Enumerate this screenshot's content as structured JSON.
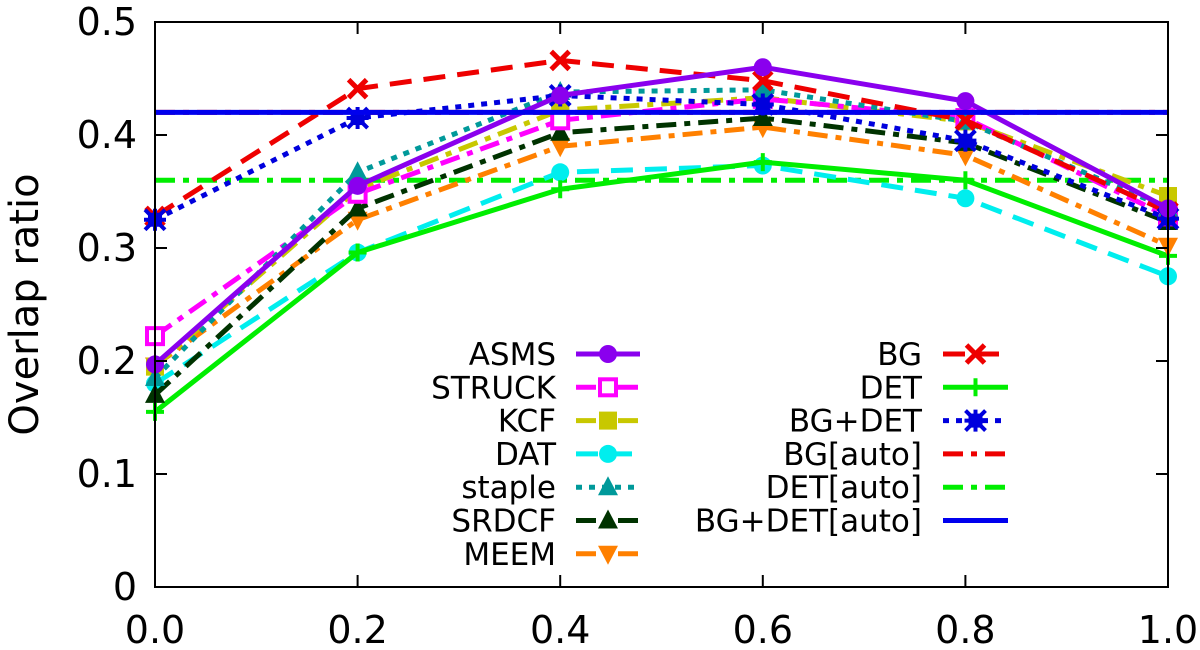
{
  "chart_data": {
    "type": "line",
    "title": "",
    "xlabel": "",
    "ylabel": "Overlap ratio",
    "xlim": [
      0.0,
      1.0
    ],
    "ylim": [
      0,
      0.5
    ],
    "x": [
      0.0,
      0.2,
      0.4,
      0.6,
      0.8,
      1.0
    ],
    "x_tick_labels": [
      "0.0",
      "0.2",
      "0.4",
      "0.6",
      "0.8",
      "1.0"
    ],
    "y_ticks": [
      0,
      0.1,
      0.2,
      0.3,
      0.4,
      0.5
    ],
    "y_tick_labels": [
      "0",
      "0.1",
      "0.2",
      "0.3",
      "0.4",
      "0.5"
    ],
    "grid": false,
    "legend_position": "bottom-center",
    "series": [
      {
        "name": "ASMS",
        "color": "#8a00ee",
        "dash": "solid",
        "marker": "circle",
        "values": [
          0.197,
          0.355,
          0.435,
          0.46,
          0.43,
          0.335
        ]
      },
      {
        "name": "STRUCK",
        "color": "#ff00ff",
        "dash": "dashdot",
        "marker": "square-open",
        "values": [
          0.222,
          0.348,
          0.413,
          0.432,
          0.415,
          0.328
        ]
      },
      {
        "name": "KCF",
        "color": "#c8c800",
        "dash": "dashdot",
        "marker": "square",
        "values": [
          0.195,
          0.352,
          0.422,
          0.433,
          0.412,
          0.346
        ]
      },
      {
        "name": "DAT",
        "color": "#00eeee",
        "dash": "dash",
        "marker": "circle",
        "values": [
          0.18,
          0.296,
          0.367,
          0.373,
          0.344,
          0.275
        ]
      },
      {
        "name": "staple",
        "color": "#00999a",
        "dash": "dot",
        "marker": "triangle-up",
        "values": [
          0.185,
          0.367,
          0.438,
          0.44,
          0.412,
          0.335
        ]
      },
      {
        "name": "SRDCF",
        "color": "#003300",
        "dash": "dashdot",
        "marker": "triangle-up",
        "values": [
          0.17,
          0.335,
          0.402,
          0.415,
          0.393,
          0.323
        ]
      },
      {
        "name": "MEEM",
        "color": "#ff8000",
        "dash": "dashdot",
        "marker": "triangle-down",
        "values": [
          0.196,
          0.325,
          0.39,
          0.407,
          0.382,
          0.302
        ]
      },
      {
        "name": "BG",
        "color": "#ee0000",
        "dash": "dash",
        "marker": "x",
        "values": [
          0.328,
          0.441,
          0.466,
          0.448,
          0.413,
          0.332
        ]
      },
      {
        "name": "DET",
        "color": "#00ee00",
        "dash": "solid",
        "marker": "plus",
        "values": [
          0.155,
          0.296,
          0.352,
          0.376,
          0.36,
          0.293
        ]
      },
      {
        "name": "BG+DET",
        "color": "#0000dd",
        "dash": "dot",
        "marker": "star",
        "values": [
          0.325,
          0.415,
          0.435,
          0.427,
          0.395,
          0.326
        ]
      },
      {
        "name": "BG[auto]",
        "color": "#ee0000",
        "dash": "dashdot",
        "marker": "none",
        "values": [
          0.42,
          0.42,
          0.42,
          0.42,
          0.42,
          0.42
        ]
      },
      {
        "name": "DET[auto]",
        "color": "#00ee00",
        "dash": "dashdot",
        "marker": "none",
        "values": [
          0.36,
          0.36,
          0.36,
          0.36,
          0.36,
          0.36
        ]
      },
      {
        "name": "BG+DET[auto]",
        "color": "#0000ee",
        "dash": "solid",
        "marker": "none",
        "values": [
          0.42,
          0.42,
          0.42,
          0.42,
          0.42,
          0.42
        ]
      }
    ]
  }
}
